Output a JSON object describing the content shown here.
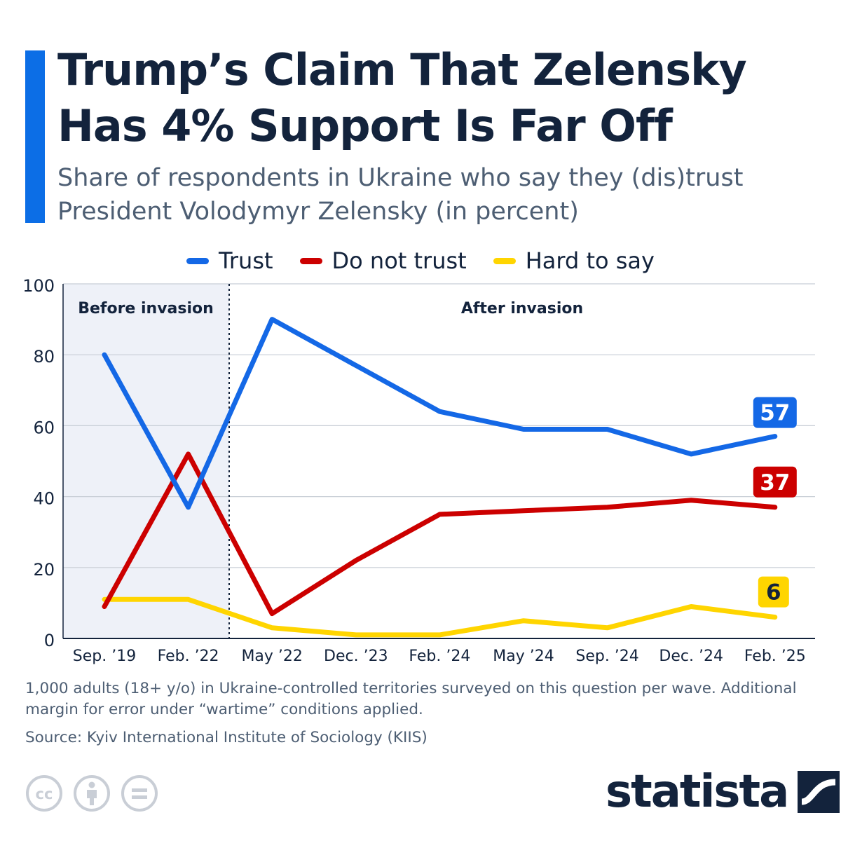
{
  "title": "Trump’s Claim That Zelensky Has 4% Support Is Far Off",
  "subtitle": "Share of respondents in Ukraine who say they (dis)trust President Volodymyr Zelensky (in percent)",
  "colors": {
    "trust": "#1468e6",
    "distrust": "#cc0000",
    "hard": "#ffd500",
    "accent": "#0c6ee6",
    "text": "#13233c"
  },
  "chart_data": {
    "type": "line",
    "categories": [
      "Sep. ’19",
      "Feb. ’22",
      "May ’22",
      "Dec. ’23",
      "Feb. ’24",
      "May ’24",
      "Sep. ’24",
      "Dec. ’24",
      "Feb. ’25"
    ],
    "series": [
      {
        "name": "Trust",
        "key": "trust",
        "values": [
          80,
          37,
          90,
          77,
          64,
          59,
          59,
          52,
          57
        ]
      },
      {
        "name": "Do not trust",
        "key": "distrust",
        "values": [
          9,
          52,
          7,
          22,
          35,
          36,
          37,
          39,
          37
        ]
      },
      {
        "name": "Hard to say",
        "key": "hard",
        "values": [
          11,
          11,
          3,
          1,
          1,
          5,
          3,
          9,
          6
        ]
      }
    ],
    "end_labels": [
      "57",
      "37",
      "6"
    ],
    "ylim": [
      0,
      100
    ],
    "yticks": [
      0,
      20,
      40,
      60,
      80,
      100
    ],
    "grid": true,
    "legend_position": "top-center",
    "annotations": {
      "before": "Before invasion",
      "after": "After invasion"
    }
  },
  "footnote": "1,000 adults (18+ y/o) in Ukraine-controlled territories surveyed on this question per wave. Additional margin for error under “wartime” conditions applied.",
  "source": "Source: Kyiv International Institute of Sociology (KIIS)",
  "brand": "statista",
  "icons": [
    "cc-icon",
    "attribution-icon",
    "no-derivatives-icon",
    "statista-logo-icon"
  ]
}
